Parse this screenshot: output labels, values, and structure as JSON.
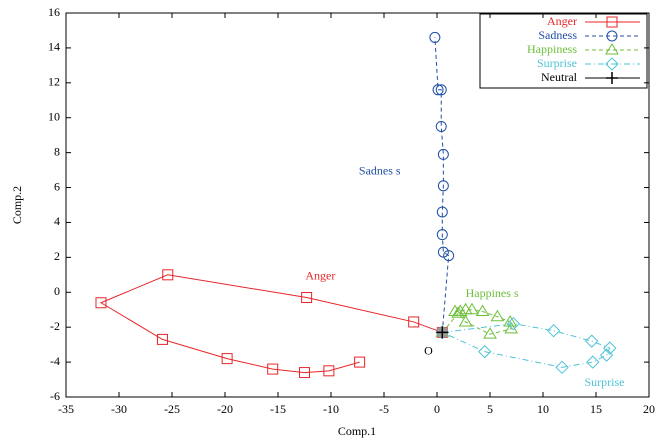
{
  "chart_data": {
    "type": "line",
    "xlabel": "Comp.1",
    "ylabel": "Comp.2",
    "xlim": [
      -35,
      20
    ],
    "xticks": [
      -35,
      -30,
      -25,
      -20,
      -15,
      -10,
      -5,
      0,
      5,
      10,
      15,
      20
    ],
    "ylim": [
      -6,
      16
    ],
    "yticks": [
      -6,
      -4,
      -2,
      0,
      2,
      4,
      6,
      8,
      10,
      12,
      14,
      16
    ],
    "grid": false,
    "legend": "upper right",
    "series": [
      {
        "name": "Anger",
        "color": "#e8262a",
        "marker": "square",
        "linestyle": "solid",
        "x": [
          0.5,
          -2.2,
          -12.3,
          -25.4,
          -31.7,
          -25.9,
          -19.8,
          -15.5,
          -12.5,
          -10.2,
          -7.3
        ],
        "values": [
          -2.3,
          -1.7,
          -0.3,
          1.0,
          -0.6,
          -2.7,
          -3.8,
          -4.4,
          -4.6,
          -4.5,
          -4.0
        ]
      },
      {
        "name": "Sadness",
        "color": "#1f4fa3",
        "marker": "circle",
        "linestyle": "dashed",
        "x": [
          0.5,
          1.1,
          0.6,
          0.5,
          0.5,
          0.6,
          0.6,
          0.4,
          0.4,
          0.1,
          -0.2
        ],
        "values": [
          -2.3,
          2.1,
          2.3,
          3.3,
          4.6,
          6.1,
          7.9,
          9.5,
          11.6,
          11.6,
          14.6
        ]
      },
      {
        "name": "Happiness",
        "color": "#6cbf3a",
        "marker": "triangle",
        "linestyle": "dashed",
        "x": [
          0.5,
          2.0,
          2.7,
          5.0,
          7.0,
          6.9,
          5.7,
          4.3,
          3.3,
          2.7,
          2.2,
          1.7
        ],
        "values": [
          -2.3,
          -1.2,
          -1.7,
          -2.4,
          -2.1,
          -1.7,
          -1.4,
          -1.1,
          -1.0,
          -1.0,
          -1.1,
          -1.1
        ]
      },
      {
        "name": "Surprise",
        "color": "#4fc3d6",
        "marker": "diamond",
        "linestyle": "dashdot",
        "x": [
          0.5,
          7.2,
          11.0,
          14.6,
          16.3,
          16.0,
          14.7,
          11.8,
          4.5,
          0.5
        ],
        "values": [
          -2.3,
          -1.8,
          -2.2,
          -2.8,
          -3.2,
          -3.6,
          -4.0,
          -4.3,
          -3.4,
          -2.3
        ]
      },
      {
        "name": "Neutral",
        "color": "#000000",
        "marker": "plus",
        "linestyle": "solid",
        "x": [
          0.5
        ],
        "values": [
          -2.3
        ]
      }
    ],
    "annotations": [
      {
        "text": "Anger",
        "color": "#e8262a"
      },
      {
        "text": "Sadnes s",
        "color": "#1f4fa3"
      },
      {
        "text": "Happines s",
        "color": "#6cbf3a"
      },
      {
        "text": "Surprise",
        "color": "#4fc3d6"
      },
      {
        "text": "O",
        "color": "#000000"
      }
    ]
  }
}
